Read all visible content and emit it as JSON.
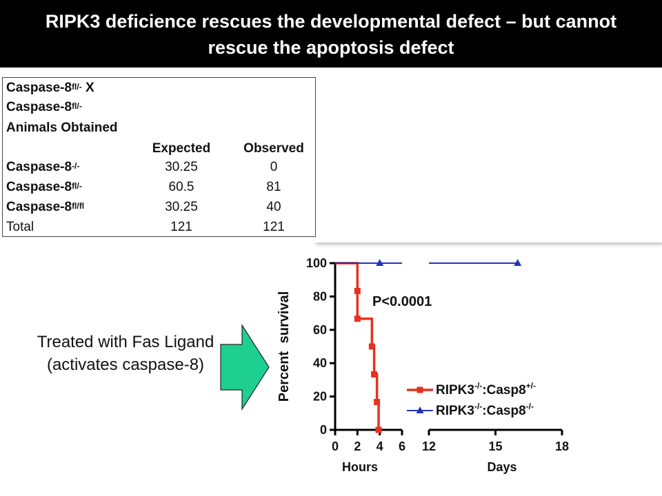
{
  "title": "RIPK3 deficience rescues the developmental defect – but cannot rescue the apoptosis defect",
  "colors": {
    "title_bg": "#000000",
    "arrow_fill": "#1ecf8f",
    "series_red": "#e8311f",
    "series_blue": "#2233bb"
  },
  "table": {
    "cross_line1": "Caspase-8",
    "cross_line1_sup": "fl/-",
    "cross_line1_suffix": " X",
    "cross_line2": "Caspase-8",
    "cross_line2_sup": "fl/-",
    "heading": "Animals Obtained",
    "columns": [
      "Expected",
      "Observed"
    ],
    "rows": [
      {
        "label": "Caspase-8",
        "sup": "-/-",
        "expected": "30.25",
        "observed": "0"
      },
      {
        "label": "Caspase-8",
        "sup": "fl/-",
        "expected": "60.5",
        "observed": "81"
      },
      {
        "label": "Caspase-8",
        "sup": "fl/fl",
        "expected": "30.25",
        "observed": "40"
      }
    ],
    "total": {
      "label": "Total",
      "expected": "121",
      "observed": "121"
    }
  },
  "annotation": "Treated with Fas Ligand (activates caspase-8)",
  "arrow_icon": "right-arrow-icon",
  "chart_data": {
    "type": "line",
    "subtype": "kaplan-meier survival curve",
    "ylabel": "Percent survival",
    "ylim": [
      0,
      100
    ],
    "yticks": [
      "0",
      "20",
      "40",
      "60",
      "80",
      "100"
    ],
    "x_segments": [
      {
        "label": "Hours",
        "range": [
          0,
          6
        ],
        "ticks": [
          "0",
          "2",
          "4",
          "6"
        ]
      },
      {
        "label": "Days",
        "range": [
          12,
          18
        ],
        "ticks": [
          "12",
          "15",
          "18"
        ]
      }
    ],
    "pvalue": "P<0.0001",
    "legend_position": "bottom-right",
    "series": [
      {
        "name_base": "RIPK3",
        "name_sup1": "-/-",
        "name_mid": ":Casp8",
        "name_sup2": "+/-",
        "color": "#e8311f",
        "marker": "square",
        "points": [
          {
            "segment": 0,
            "x": 0,
            "y": 100
          },
          {
            "segment": 0,
            "x": 2,
            "y": 100
          },
          {
            "segment": 0,
            "x": 2,
            "y": 83.3
          },
          {
            "segment": 0,
            "x": 2,
            "y": 66.7
          },
          {
            "segment": 0,
            "x": 3.3,
            "y": 66.7
          },
          {
            "segment": 0,
            "x": 3.3,
            "y": 50
          },
          {
            "segment": 0,
            "x": 3.5,
            "y": 50
          },
          {
            "segment": 0,
            "x": 3.5,
            "y": 33.3
          },
          {
            "segment": 0,
            "x": 3.75,
            "y": 33.3
          },
          {
            "segment": 0,
            "x": 3.75,
            "y": 16.7
          },
          {
            "segment": 0,
            "x": 3.9,
            "y": 16.7
          },
          {
            "segment": 0,
            "x": 3.9,
            "y": 0
          }
        ],
        "markers": [
          {
            "segment": 0,
            "x": 2,
            "y": 83.3
          },
          {
            "segment": 0,
            "x": 2,
            "y": 66.7
          },
          {
            "segment": 0,
            "x": 3.3,
            "y": 50
          },
          {
            "segment": 0,
            "x": 3.5,
            "y": 33.3
          },
          {
            "segment": 0,
            "x": 3.75,
            "y": 16.7
          },
          {
            "segment": 0,
            "x": 3.9,
            "y": 0
          }
        ]
      },
      {
        "name_base": "RIPK3",
        "name_sup1": "-/-",
        "name_mid": ":Casp8",
        "name_sup2": "-/-",
        "color": "#2233bb",
        "marker": "triangle",
        "points": [
          {
            "segment": 0,
            "x": 0,
            "y": 100
          },
          {
            "segment": 0,
            "x": 6,
            "y": 100
          },
          {
            "segment": 1,
            "x": 12,
            "y": 100
          },
          {
            "segment": 1,
            "x": 16,
            "y": 100
          }
        ],
        "markers": [
          {
            "segment": 0,
            "x": 4,
            "y": 100
          },
          {
            "segment": 1,
            "x": 16,
            "y": 100
          }
        ]
      }
    ]
  }
}
